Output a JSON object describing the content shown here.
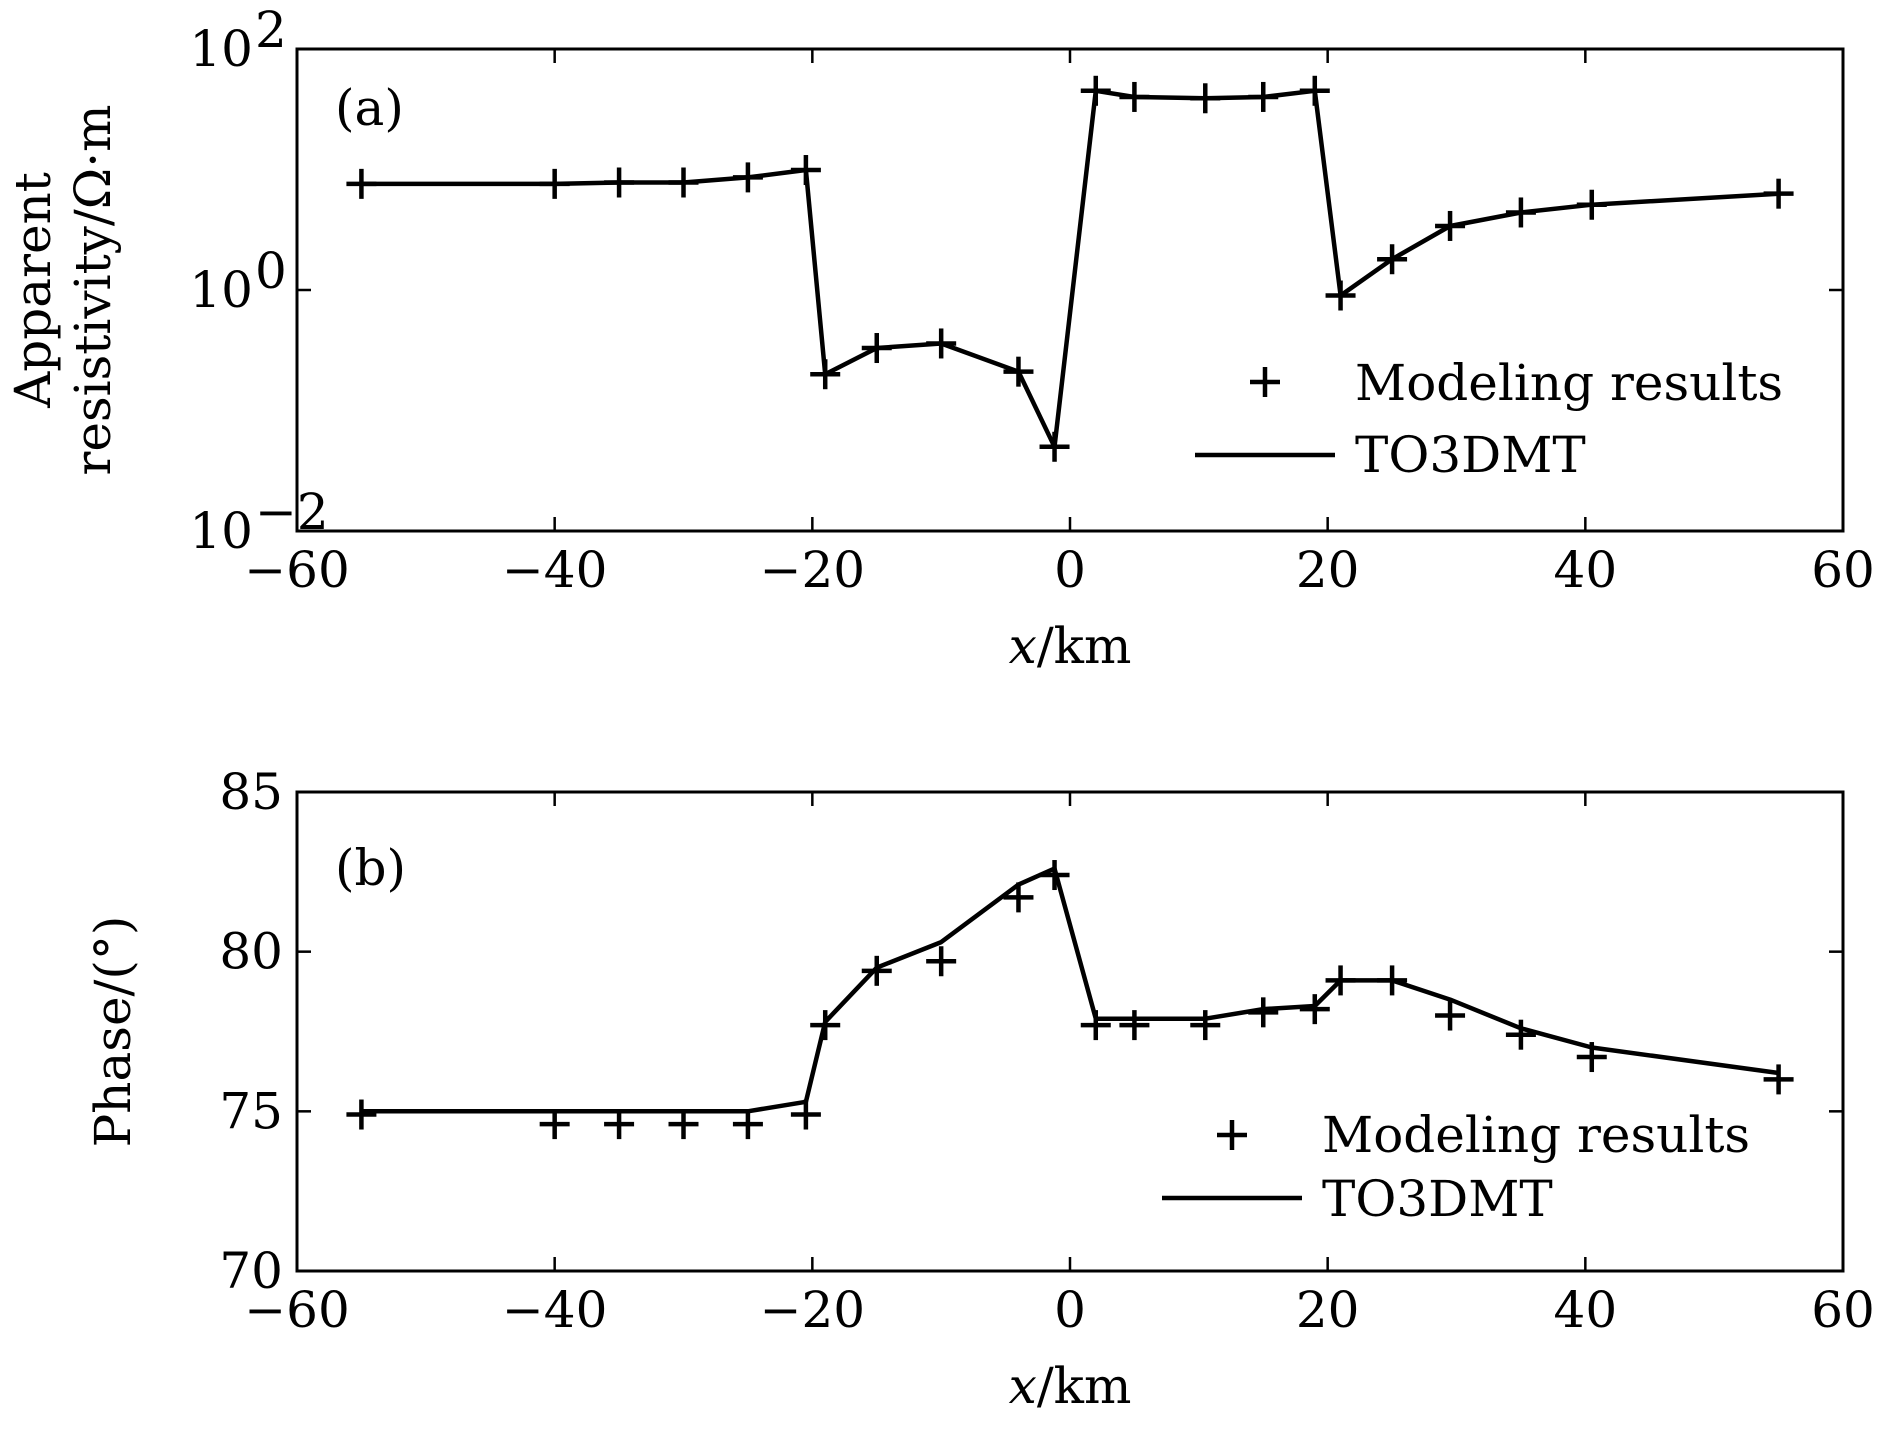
{
  "chart_data": [
    {
      "panel_label": "(a)",
      "type": "line",
      "yscale": "log",
      "ylabel_line1": "Apparent",
      "ylabel_line2": "resistivity/Ω·m",
      "xlabel_var": "x",
      "xlabel_unit": "/km",
      "xlim": [
        -60,
        60
      ],
      "ylim": [
        0.01,
        100
      ],
      "xticks": [
        -60,
        -40,
        -20,
        0,
        20,
        40,
        60
      ],
      "xtick_labels": [
        "−60",
        "−40",
        "−20",
        "0",
        "20",
        "40",
        "60"
      ],
      "yticks": [
        {
          "value": 100,
          "base": "10",
          "exp": "2"
        },
        {
          "value": 1,
          "base": "10",
          "exp": "0"
        },
        {
          "value": 0.01,
          "base": "10",
          "exp": "−2"
        }
      ],
      "legend_position": "lower-right",
      "series": [
        {
          "name": "Modeling results",
          "style": "marker-plus",
          "x": [
            -55,
            -40,
            -35,
            -30,
            -25,
            -20.5,
            -19,
            -15,
            -10,
            -4,
            -1.2,
            2,
            5,
            10.5,
            15,
            19,
            21,
            25,
            29.5,
            35,
            40.5,
            55
          ],
          "y": [
            7.6,
            7.6,
            7.8,
            7.8,
            8.6,
            9.9,
            0.2,
            0.33,
            0.36,
            0.21,
            0.05,
            45,
            40,
            39,
            40,
            45,
            0.9,
            1.8,
            3.4,
            4.4,
            5.1,
            6.3
          ]
        },
        {
          "name": "TO3DMT",
          "style": "line",
          "x": [
            -55,
            -40,
            -35,
            -30,
            -25,
            -20.5,
            -19,
            -15,
            -10,
            -4,
            -1.2,
            2,
            5,
            10.5,
            15,
            19,
            21,
            25,
            29.5,
            35,
            40.5,
            55
          ],
          "y": [
            7.6,
            7.6,
            7.8,
            7.8,
            8.6,
            9.9,
            0.2,
            0.33,
            0.36,
            0.21,
            0.05,
            45,
            40,
            39,
            40,
            45,
            0.9,
            1.8,
            3.4,
            4.4,
            5.1,
            6.3
          ]
        }
      ]
    },
    {
      "panel_label": "(b)",
      "type": "line",
      "yscale": "linear",
      "ylabel": "Phase/(°)",
      "xlabel_var": "x",
      "xlabel_unit": "/km",
      "xlim": [
        -60,
        60
      ],
      "ylim": [
        70,
        85
      ],
      "xticks": [
        -60,
        -40,
        -20,
        0,
        20,
        40,
        60
      ],
      "xtick_labels": [
        "−60",
        "−40",
        "−20",
        "0",
        "20",
        "40",
        "60"
      ],
      "yticks": [
        70,
        75,
        80,
        85
      ],
      "ytick_labels": [
        "70",
        "75",
        "80",
        "85"
      ],
      "legend_position": "lower-right",
      "series": [
        {
          "name": "Modeling results",
          "style": "marker-plus",
          "x": [
            -55,
            -40,
            -35,
            -30,
            -25,
            -20.5,
            -19,
            -15,
            -10,
            -4,
            -1.2,
            2,
            5,
            10.5,
            15,
            19,
            21,
            25,
            29.5,
            35,
            40.5,
            55
          ],
          "y": [
            74.9,
            74.6,
            74.6,
            74.6,
            74.6,
            74.9,
            77.7,
            79.4,
            79.7,
            81.7,
            82.4,
            77.7,
            77.7,
            77.7,
            78.1,
            78.2,
            79.1,
            79.1,
            78.0,
            77.4,
            76.7,
            76.0
          ]
        },
        {
          "name": "TO3DMT",
          "style": "line",
          "x": [
            -55,
            -40,
            -35,
            -30,
            -25,
            -20.5,
            -19,
            -15,
            -10,
            -4,
            -1.2,
            2,
            5,
            10.5,
            15,
            19,
            21,
            25,
            29.5,
            35,
            40.5,
            55
          ],
          "y": [
            75.0,
            75.0,
            75.0,
            75.0,
            75.0,
            75.3,
            77.8,
            79.5,
            80.3,
            82.1,
            82.6,
            77.9,
            77.9,
            77.9,
            78.2,
            78.3,
            79.1,
            79.1,
            78.5,
            77.6,
            77.0,
            76.2
          ]
        }
      ]
    }
  ]
}
